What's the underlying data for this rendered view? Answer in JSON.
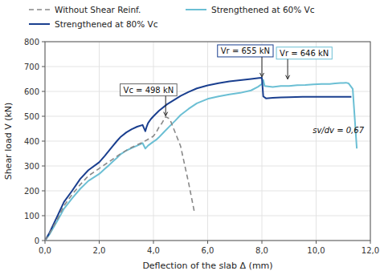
{
  "chart_data": {
    "type": "line",
    "xlabel": "Deflection of the slab Δ (mm)",
    "ylabel": "Shear load V (kN)",
    "xlim": [
      0,
      12
    ],
    "ylim": [
      0,
      800
    ],
    "xticks": [
      {
        "value": 0.0,
        "label": "0,0"
      },
      {
        "value": 2.0,
        "label": "2,0"
      },
      {
        "value": 4.0,
        "label": "4,0"
      },
      {
        "value": 6.0,
        "label": "6,0"
      },
      {
        "value": 8.0,
        "label": "8,0"
      },
      {
        "value": 10.0,
        "label": "10,0"
      },
      {
        "value": 12.0,
        "label": "12,0"
      }
    ],
    "yticks": [
      0,
      100,
      200,
      300,
      400,
      500,
      600,
      700,
      800
    ],
    "grid": true,
    "legend": "top",
    "series": [
      {
        "name": "Without Shear Reinf.",
        "color": "#888888",
        "line_style": "dashed",
        "x": [
          0.0,
          0.15,
          0.3,
          0.5,
          0.7,
          1.0,
          1.3,
          1.6,
          2.0,
          2.4,
          2.8,
          3.2,
          3.6,
          3.85,
          4.0,
          4.1,
          4.2,
          4.3,
          4.45,
          4.6,
          5.0,
          5.3,
          5.5
        ],
        "values": [
          0,
          25,
          55,
          95,
          140,
          185,
          225,
          260,
          290,
          320,
          350,
          375,
          395,
          410,
          420,
          435,
          455,
          470,
          498,
          490,
          380,
          230,
          120
        ]
      },
      {
        "name": "Strengthened at 60% Vc",
        "color": "#6bbfd4",
        "line_style": "solid",
        "x": [
          0.0,
          0.15,
          0.3,
          0.5,
          0.7,
          1.0,
          1.3,
          1.6,
          2.0,
          2.2,
          2.35,
          2.5,
          2.65,
          2.8,
          3.0,
          3.2,
          3.4,
          3.6,
          3.7,
          3.8,
          3.9,
          4.0,
          4.1,
          4.2,
          4.4,
          4.6,
          4.8,
          5.0,
          5.3,
          5.6,
          6.0,
          6.4,
          6.8,
          7.2,
          7.6,
          7.85,
          8.0,
          8.05,
          8.1,
          8.4,
          8.7,
          9.0,
          9.3,
          9.6,
          9.9,
          10.2,
          10.5,
          10.7,
          10.9,
          11.0,
          11.1,
          11.2,
          11.35,
          11.5
        ],
        "values": [
          0,
          22,
          50,
          88,
          128,
          170,
          208,
          240,
          268,
          288,
          302,
          318,
          332,
          348,
          362,
          372,
          382,
          392,
          370,
          382,
          390,
          398,
          405,
          415,
          438,
          460,
          482,
          505,
          530,
          552,
          570,
          580,
          588,
          594,
          604,
          618,
          630,
          646,
          622,
          618,
          622,
          622,
          625,
          626,
          628,
          630,
          630,
          632,
          634,
          634,
          635,
          632,
          610,
          370
        ]
      },
      {
        "name": "Strengthened at 80% Vc",
        "color": "#1a3f8f",
        "line_style": "solid",
        "x": [
          0.0,
          0.15,
          0.3,
          0.5,
          0.7,
          1.0,
          1.3,
          1.6,
          2.0,
          2.2,
          2.35,
          2.5,
          2.65,
          2.8,
          3.0,
          3.2,
          3.4,
          3.6,
          3.7,
          3.75,
          3.8,
          3.9,
          4.0,
          4.2,
          4.5,
          4.8,
          5.0,
          5.3,
          5.6,
          6.0,
          6.4,
          6.8,
          7.2,
          7.6,
          7.9,
          8.0,
          8.05,
          8.15,
          8.4,
          8.7,
          9.0,
          9.5,
          10.0,
          10.5,
          11.0,
          11.3
        ],
        "values": [
          0,
          28,
          62,
          108,
          155,
          200,
          248,
          283,
          315,
          340,
          360,
          380,
          400,
          418,
          435,
          448,
          458,
          465,
          440,
          458,
          472,
          488,
          500,
          522,
          548,
          568,
          582,
          598,
          612,
          624,
          633,
          640,
          645,
          650,
          654,
          655,
          580,
          572,
          574,
          576,
          577,
          578,
          578,
          578,
          578,
          578
        ]
      }
    ],
    "annotations": [
      {
        "text": "Vc = 498 kN",
        "x": 4.45,
        "y": 498,
        "color": "#666666"
      },
      {
        "text": "Vr = 655 kN",
        "x": 8.0,
        "y": 655,
        "color": "#1a3f8f"
      },
      {
        "text": "Vr = 646 kN",
        "x": 8.95,
        "y": 646,
        "color": "#6bbfd4"
      },
      {
        "text": "sv/dv = 0,67"
      }
    ]
  }
}
